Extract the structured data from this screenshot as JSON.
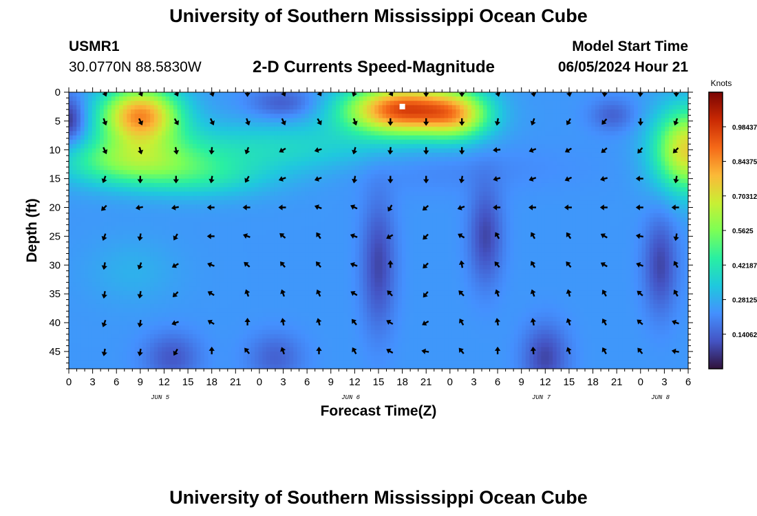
{
  "page": {
    "title_top": "University of Southern Mississippi Ocean Cube",
    "title_bottom": "University of Southern Mississippi Ocean Cube",
    "station_id": "USMR1",
    "station_coords": "30.0770N  88.5830W",
    "plot_title": "2-D Currents Speed-Magnitude",
    "model_label": "Model Start Time",
    "model_time": "06/05/2024 Hour 21"
  },
  "colors": {
    "scale": [
      "#30123b",
      "#4454c4",
      "#4490fe",
      "#1fc8de",
      "#29efa2",
      "#7cff55",
      "#c9ef34",
      "#fbb938",
      "#f56918",
      "#c92903",
      "#7a0403"
    ],
    "marker": "#ffffff",
    "arrow": "#000000"
  },
  "chart_data": {
    "type": "heatmap",
    "xlabel": "Forecast Time(Z)",
    "ylabel": "Depth (ft)",
    "x_ticks": [
      "0",
      "3",
      "6",
      "9",
      "12",
      "15",
      "18",
      "21",
      "0",
      "3",
      "6",
      "9",
      "12",
      "15",
      "18",
      "21",
      "0",
      "3",
      "6",
      "9",
      "12",
      "15",
      "18",
      "21",
      "0",
      "3",
      "6"
    ],
    "x_range": [
      0,
      78
    ],
    "day_labels": [
      {
        "text": "JUN 5",
        "x": 11.5
      },
      {
        "text": "JUN 6",
        "x": 35.5
      },
      {
        "text": "JUN 7",
        "x": 59.5
      },
      {
        "text": "JUN 8",
        "x": 74.5
      }
    ],
    "y_ticks": [
      0,
      5,
      10,
      15,
      20,
      25,
      30,
      35,
      40,
      45
    ],
    "y_range": [
      0,
      48
    ],
    "y_inverted": true,
    "colorbar": {
      "title": "Knots",
      "range": [
        0,
        1.125
      ],
      "tick_labels": [
        "0.984375",
        "0.84375",
        "0.703125",
        "0.5625",
        "0.421875",
        "0.28125",
        "0.140625"
      ],
      "tick_values": [
        0.984375,
        0.84375,
        0.703125,
        0.5625,
        0.421875,
        0.28125,
        0.140625
      ]
    },
    "arrow_times": [
      4.5,
      9,
      13.5,
      18,
      22.5,
      27,
      31.5,
      36,
      40.5,
      45,
      49.5,
      54,
      58.5,
      63,
      67.5,
      72,
      76.5
    ],
    "arrow_depths": [
      0,
      5,
      10,
      15,
      20,
      25,
      30,
      35,
      40,
      45
    ],
    "start_marker": {
      "x": 42,
      "y": 2.5
    },
    "speed_features": [
      {
        "x": 9,
        "y": 4,
        "sx": 3.5,
        "sy": 3.5,
        "v": 0.6
      },
      {
        "x": 42,
        "y": 3,
        "sx": 5,
        "sy": 3,
        "v": 0.7
      },
      {
        "x": 49,
        "y": 4,
        "sx": 3,
        "sy": 3,
        "v": 0.35
      },
      {
        "x": 43,
        "y": 13,
        "sx": 12,
        "sy": 3,
        "v": -0.05
      },
      {
        "x": 8,
        "y": 12,
        "sx": 6,
        "sy": 3,
        "v": 0.3
      },
      {
        "x": 26,
        "y": 10,
        "sx": 12,
        "sy": 3.5,
        "v": 0.15
      },
      {
        "x": 17,
        "y": 15,
        "sx": 6,
        "sy": 2.5,
        "v": 0.12
      },
      {
        "x": 78,
        "y": 10,
        "sx": 3,
        "sy": 5,
        "v": 0.5
      },
      {
        "x": 0,
        "y": 5,
        "sx": 1.5,
        "sy": 3,
        "v": -0.2
      },
      {
        "x": 27,
        "y": 2,
        "sx": 3,
        "sy": 2,
        "v": -0.12
      },
      {
        "x": 68.5,
        "y": 4,
        "sx": 2,
        "sy": 2,
        "v": -0.1
      },
      {
        "x": 39,
        "y": 30,
        "sx": 1.5,
        "sy": 8,
        "v": -0.15
      },
      {
        "x": 52.5,
        "y": 25,
        "sx": 1.5,
        "sy": 6,
        "v": -0.15
      },
      {
        "x": 74.5,
        "y": 30,
        "sx": 1.5,
        "sy": 6,
        "v": -0.15
      },
      {
        "x": 60,
        "y": 46,
        "sx": 2,
        "sy": 4,
        "v": -0.15
      },
      {
        "x": 13,
        "y": 46,
        "sx": 2.5,
        "sy": 3,
        "v": -0.12
      },
      {
        "x": 26,
        "y": 46,
        "sx": 2.5,
        "sy": 3,
        "v": -0.1
      },
      {
        "x": 8,
        "y": 31,
        "sx": 4,
        "sy": 4,
        "v": 0.05
      }
    ],
    "arrow_angles": [
      [
        -22,
        -25,
        -25,
        -18,
        0,
        -25,
        -30,
        20,
        -30,
        0,
        0,
        -15,
        -10,
        -10,
        5,
        5,
        0
      ],
      [
        -20,
        -25,
        -30,
        -25,
        -20,
        -25,
        -30,
        -20,
        0,
        0,
        0,
        10,
        20,
        30,
        40,
        0,
        20
      ],
      [
        -25,
        -15,
        -10,
        5,
        20,
        60,
        75,
        15,
        5,
        0,
        0,
        85,
        70,
        60,
        50,
        40,
        45
      ],
      [
        20,
        0,
        0,
        10,
        30,
        70,
        70,
        10,
        0,
        0,
        10,
        75,
        70,
        65,
        75,
        90,
        10
      ],
      [
        45,
        80,
        80,
        90,
        90,
        90,
        110,
        115,
        30,
        50,
        70,
        90,
        90,
        90,
        90,
        90,
        90
      ],
      [
        20,
        10,
        30,
        90,
        110,
        130,
        145,
        110,
        60,
        45,
        120,
        150,
        150,
        145,
        120,
        100,
        10
      ],
      [
        10,
        20,
        60,
        110,
        130,
        140,
        140,
        110,
        180,
        45,
        170,
        140,
        150,
        140,
        120,
        110,
        150
      ],
      [
        10,
        10,
        45,
        120,
        160,
        160,
        155,
        120,
        135,
        40,
        135,
        160,
        160,
        165,
        150,
        130,
        150
      ],
      [
        20,
        10,
        70,
        120,
        180,
        170,
        165,
        140,
        120,
        60,
        150,
        170,
        170,
        160,
        150,
        130,
        110
      ],
      [
        10,
        10,
        30,
        180,
        140,
        160,
        180,
        150,
        120,
        100,
        140,
        180,
        175,
        160,
        150,
        140,
        100
      ]
    ]
  }
}
